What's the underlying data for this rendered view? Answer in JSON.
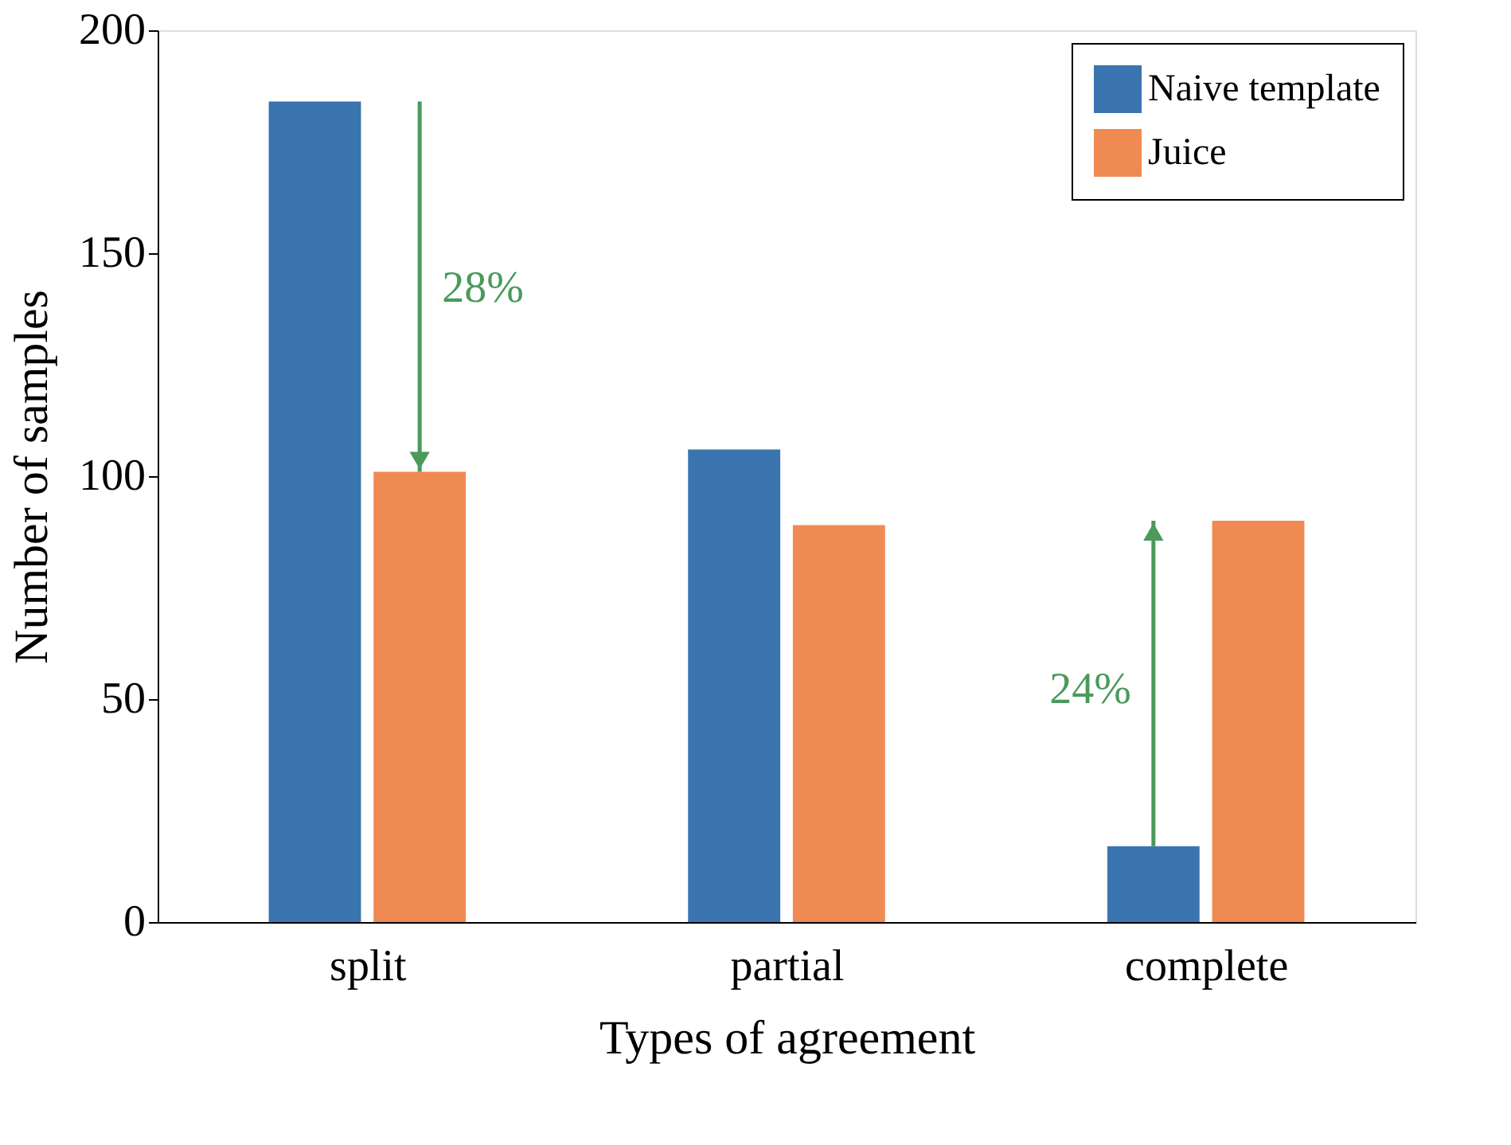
{
  "chart_data": {
    "type": "bar",
    "xlabel": "Types of agreement",
    "ylabel": "Number of samples",
    "categories": [
      "split",
      "partial",
      "complete"
    ],
    "series": [
      {
        "name": "Naive template",
        "color": "#3b75af",
        "values": [
          184,
          106,
          17
        ]
      },
      {
        "name": "Juice",
        "color": "#ef8a53",
        "values": [
          101,
          89,
          90
        ]
      }
    ],
    "ylim": [
      0,
      200
    ],
    "yticks": [
      0,
      50,
      100,
      150,
      200
    ],
    "grid": false,
    "legend": "top right",
    "annotations": [
      {
        "text": "28%",
        "x": "split",
        "y": 142
      },
      {
        "text": "24%",
        "x": "complete",
        "y": 52
      }
    ]
  }
}
